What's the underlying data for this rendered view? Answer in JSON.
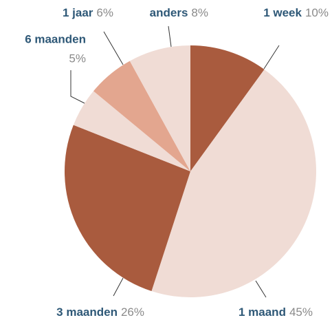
{
  "chart_data": {
    "type": "pie",
    "categories": [
      "1 week",
      "1 maand",
      "3 maanden",
      "6 maanden",
      "1 jaar",
      "anders"
    ],
    "values": [
      10,
      45,
      26,
      5,
      6,
      8
    ],
    "value_labels": [
      "10%",
      "45%",
      "26%",
      "5%",
      "6%",
      "8%"
    ],
    "colors": [
      "#a95b3e",
      "#f0dcd5",
      "#a95b3e",
      "#f0dcd5",
      "#e3a68f",
      "#f0dcd5"
    ]
  }
}
